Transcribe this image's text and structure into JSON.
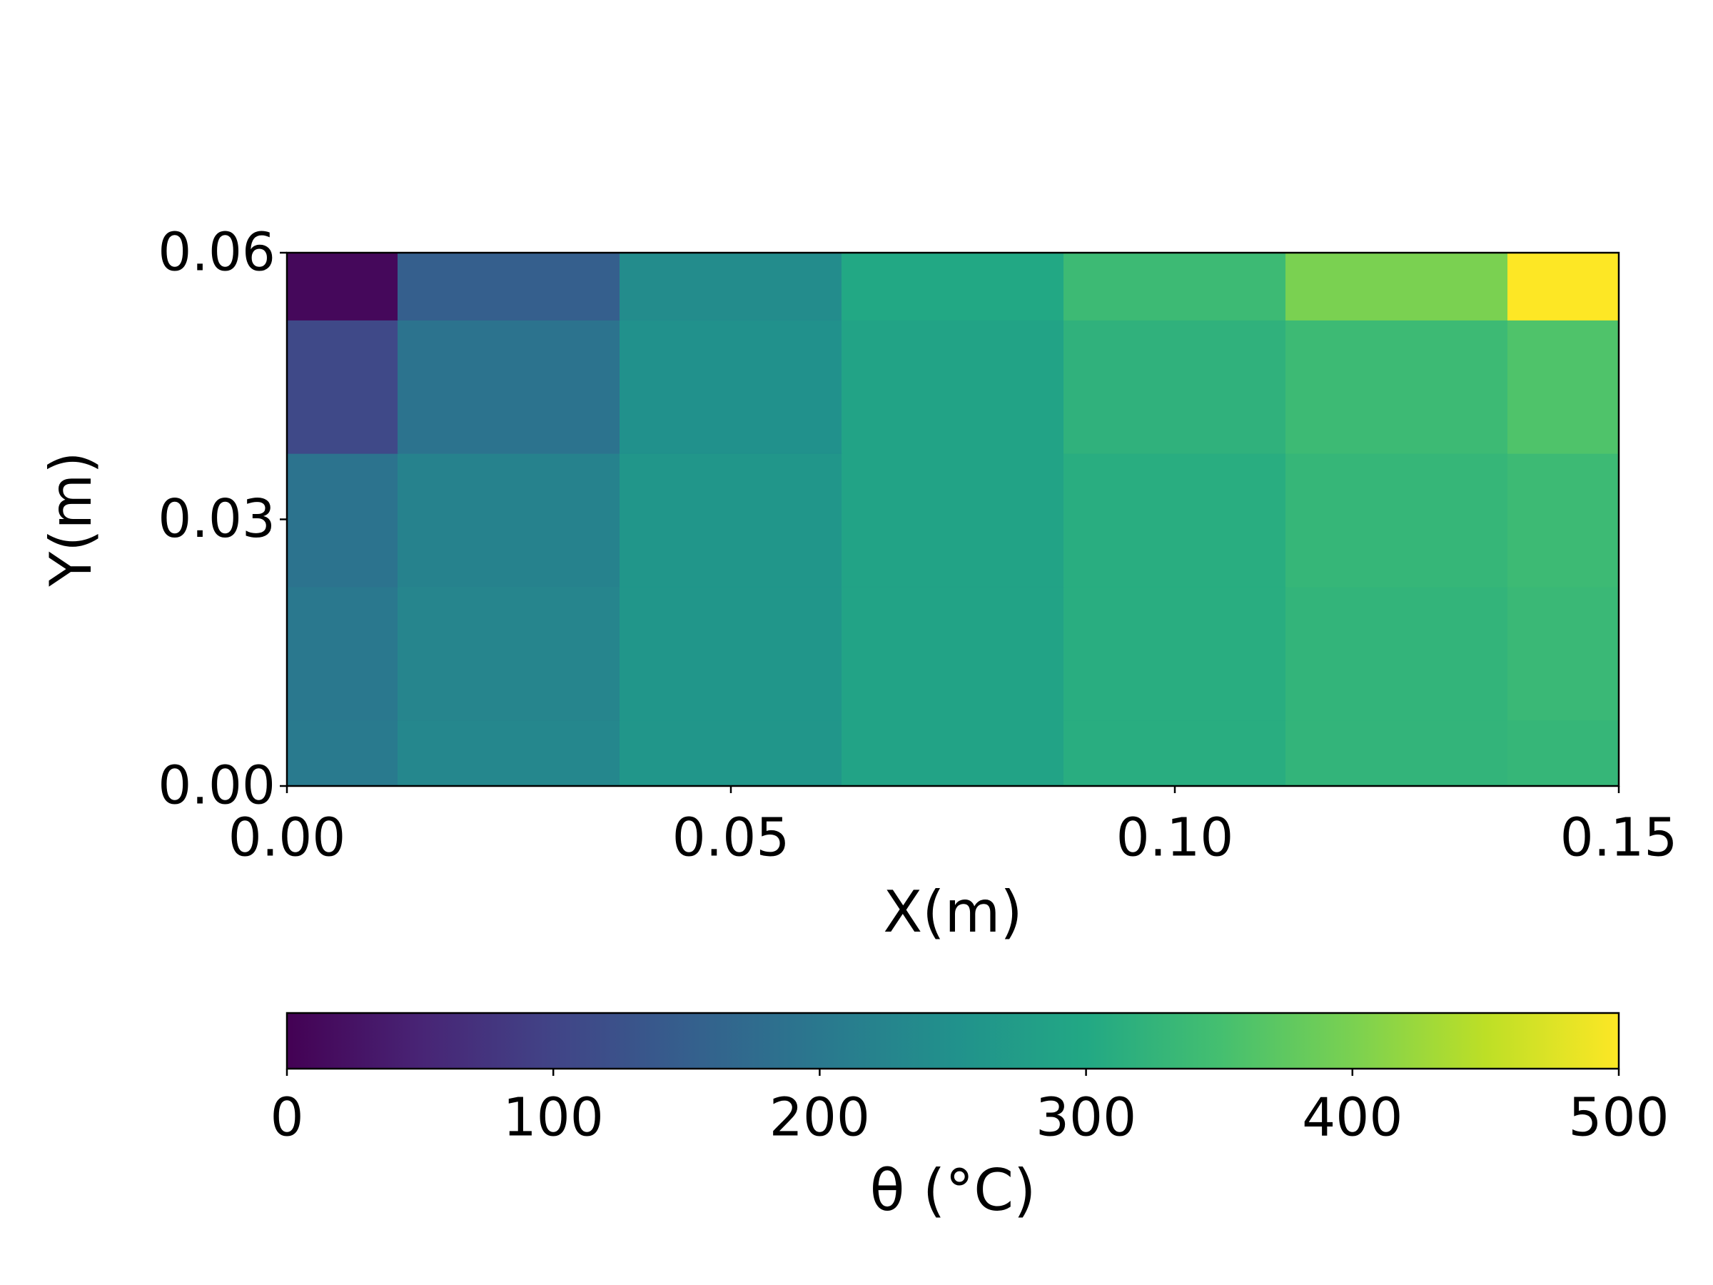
{
  "chart_data": {
    "type": "heatmap",
    "x": [
      0,
      0.025,
      0.05,
      0.075,
      0.1,
      0.125,
      0.15
    ],
    "y": [
      0,
      0.015,
      0.03,
      0.045,
      0.06
    ],
    "z": [
      [
        205,
        230,
        260,
        290,
        310,
        325,
        330
      ],
      [
        200,
        225,
        260,
        290,
        310,
        325,
        335
      ],
      [
        190,
        220,
        260,
        290,
        310,
        330,
        340
      ],
      [
        110,
        190,
        250,
        290,
        320,
        340,
        360
      ],
      [
        10,
        150,
        240,
        300,
        340,
        400,
        500
      ]
    ],
    "xlim": [
      0,
      0.15
    ],
    "ylim": [
      0,
      0.06
    ],
    "xticks": [
      {
        "value": 0,
        "label": "0.00"
      },
      0.05,
      {
        "value": 0.1,
        "label": "0.10"
      },
      0.15
    ],
    "yticks": [
      {
        "value": 0,
        "label": "0.00"
      },
      0.03,
      0.06
    ],
    "xlabel": "X(m)",
    "ylabel": "Y(m)",
    "colormap": "viridis",
    "colorbar": {
      "label": "θ (°C)",
      "lim": [
        0,
        500
      ],
      "ticks": [
        0,
        100,
        200,
        300,
        400,
        500
      ]
    }
  }
}
